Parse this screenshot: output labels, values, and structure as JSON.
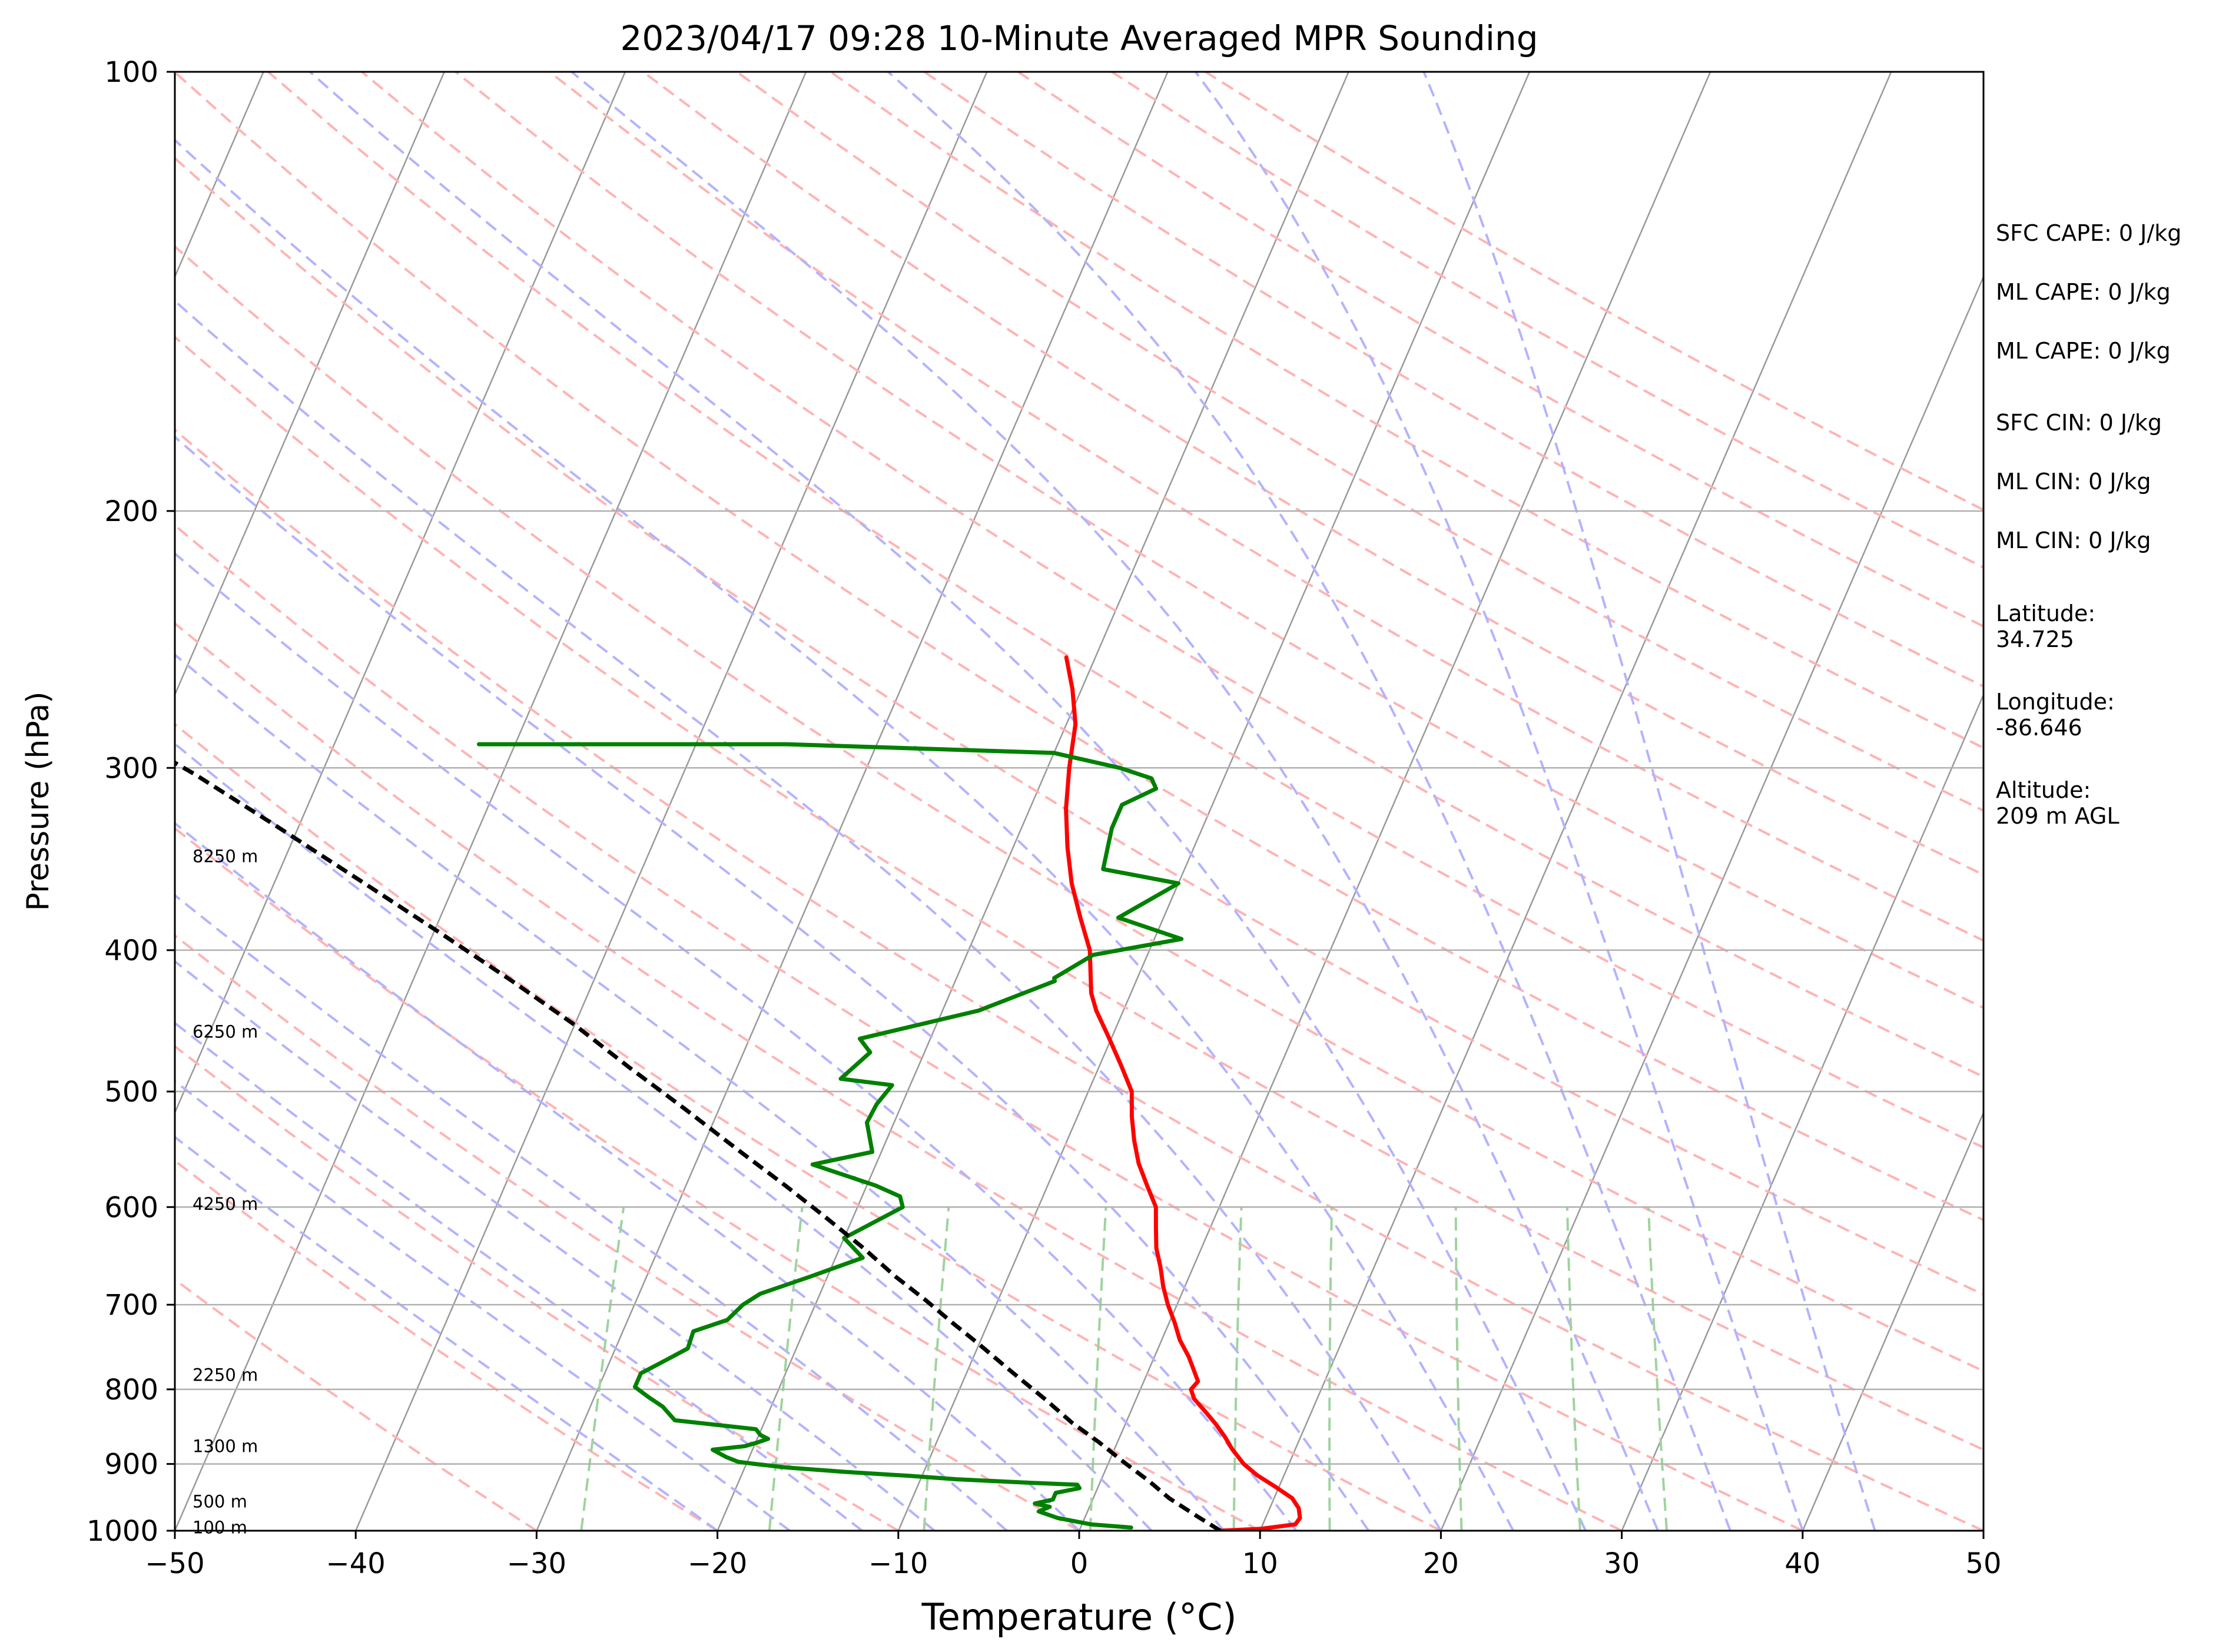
{
  "chart_data": {
    "type": "line",
    "title": "2023/04/17 09:28 10-Minute Averaged MPR Sounding",
    "xlabel": "Temperature (°C)",
    "ylabel": "Pressure (hPa)",
    "xlim": [
      -50,
      50
    ],
    "ylim": [
      1000,
      100
    ],
    "y_scale": "log",
    "skew_t": true,
    "x_ticks": [
      "−50",
      "−40",
      "−30",
      "−20",
      "−10",
      "0",
      "10",
      "20",
      "30",
      "40",
      "50"
    ],
    "x_tick_values": [
      -50,
      -40,
      -30,
      -20,
      -10,
      0,
      10,
      20,
      30,
      40,
      50
    ],
    "y_ticks": [
      "100",
      "200",
      "300",
      "400",
      "500",
      "600",
      "700",
      "800",
      "900",
      "1000"
    ],
    "y_tick_values": [
      100,
      200,
      300,
      400,
      500,
      600,
      700,
      800,
      900,
      1000
    ],
    "grid": true,
    "height_labels": [
      {
        "text": "8250 m",
        "p": 345
      },
      {
        "text": "6250 m",
        "p": 455
      },
      {
        "text": "4250 m",
        "p": 597
      },
      {
        "text": "2250 m",
        "p": 782
      },
      {
        "text": "1300 m",
        "p": 875
      },
      {
        "text": "500 m",
        "p": 955
      },
      {
        "text": "100 m",
        "p": 995
      }
    ],
    "series": [
      {
        "key": "temperature",
        "color": "#ff0000",
        "points": [
          [
            7.8,
            1000
          ],
          [
            10,
            997
          ],
          [
            11.8,
            990
          ],
          [
            11.9,
            980
          ],
          [
            11.6,
            965
          ],
          [
            11,
            950
          ],
          [
            9.8,
            933
          ],
          [
            8.5,
            916
          ],
          [
            7.5,
            900
          ],
          [
            6.5,
            879
          ],
          [
            5.8,
            862
          ],
          [
            5,
            845
          ],
          [
            4.2,
            830
          ],
          [
            3.2,
            812
          ],
          [
            2.8,
            800
          ],
          [
            3,
            790
          ],
          [
            1.9,
            760
          ],
          [
            1,
            740
          ],
          [
            0.3,
            720
          ],
          [
            -0.5,
            700
          ],
          [
            -1.2,
            680
          ],
          [
            -1.8,
            660
          ],
          [
            -2.5,
            640
          ],
          [
            -3,
            620
          ],
          [
            -3.5,
            600
          ],
          [
            -4.5,
            580
          ],
          [
            -5.5,
            560
          ],
          [
            -6.3,
            540
          ],
          [
            -7,
            520
          ],
          [
            -7.6,
            500
          ],
          [
            -8.8,
            480
          ],
          [
            -10.1,
            460
          ],
          [
            -11.5,
            440
          ],
          [
            -12.2,
            428
          ],
          [
            -13.3,
            400
          ],
          [
            -14.6,
            380
          ],
          [
            -15.9,
            360
          ],
          [
            -17,
            340
          ],
          [
            -18,
            320
          ],
          [
            -18.8,
            300
          ],
          [
            -19.5,
            280
          ],
          [
            -20.5,
            265
          ],
          [
            -21.6,
            252
          ]
        ]
      },
      {
        "key": "dewpoint",
        "color": "#008000",
        "points": [
          [
            2.8,
            995
          ],
          [
            0.5,
            990
          ],
          [
            -1.5,
            980
          ],
          [
            -2.7,
            970
          ],
          [
            -2.2,
            963
          ],
          [
            -3.1,
            958
          ],
          [
            -2.2,
            952
          ],
          [
            -2.2,
            942
          ],
          [
            -1,
            935
          ],
          [
            -1.2,
            930
          ],
          [
            -4,
            927
          ],
          [
            -8,
            922
          ],
          [
            -10.7,
            917
          ],
          [
            -14.5,
            911
          ],
          [
            -17.7,
            905
          ],
          [
            -19.5,
            900
          ],
          [
            -20.5,
            897
          ],
          [
            -21.3,
            890
          ],
          [
            -22.2,
            880
          ],
          [
            -20.5,
            875
          ],
          [
            -19.9,
            870
          ],
          [
            -19.4,
            865
          ],
          [
            -19.9,
            860
          ],
          [
            -20.3,
            852
          ],
          [
            -25,
            840
          ],
          [
            -26,
            822
          ],
          [
            -27,
            810
          ],
          [
            -28,
            797
          ],
          [
            -28,
            780
          ],
          [
            -27,
            765
          ],
          [
            -26,
            750
          ],
          [
            -26.1,
            730
          ],
          [
            -24.5,
            717
          ],
          [
            -24,
            700
          ],
          [
            -23.3,
            688
          ],
          [
            -21,
            670
          ],
          [
            -18.5,
            650
          ],
          [
            -20,
            630
          ],
          [
            -17.5,
            600
          ],
          [
            -17.9,
            590
          ],
          [
            -19.5,
            580
          ],
          [
            -23.5,
            561
          ],
          [
            -20.5,
            550
          ],
          [
            -21.5,
            525
          ],
          [
            -21.4,
            510
          ],
          [
            -21,
            495
          ],
          [
            -24,
            490
          ],
          [
            -23,
            470
          ],
          [
            -23.9,
            460
          ],
          [
            -18,
            440
          ],
          [
            -14.5,
            420
          ],
          [
            -14.6,
            418
          ],
          [
            -13,
            403
          ],
          [
            -8.5,
            393
          ],
          [
            -12.5,
            380
          ],
          [
            -10,
            360
          ],
          [
            -14.5,
            352
          ],
          [
            -15,
            330
          ],
          [
            -15,
            318
          ],
          [
            -13.5,
            310
          ],
          [
            -14,
            305
          ],
          [
            -16,
            300
          ],
          [
            -20,
            293
          ],
          [
            -35,
            289
          ],
          [
            -52,
            289
          ]
        ]
      },
      {
        "key": "parcel",
        "color": "#000000",
        "dashed": true,
        "points": [
          [
            7.8,
            1000
          ],
          [
            6,
            975
          ],
          [
            4.2,
            950
          ],
          [
            3,
            930
          ],
          [
            2.5,
            922
          ],
          [
            1,
            900
          ],
          [
            -1,
            870
          ],
          [
            -3,
            843
          ],
          [
            -5,
            813
          ],
          [
            -7.4,
            780
          ],
          [
            -10,
            745
          ],
          [
            -12,
            720
          ],
          [
            -14,
            695
          ],
          [
            -16.2,
            670
          ],
          [
            -18.7,
            640
          ],
          [
            -21.5,
            610
          ],
          [
            -24.5,
            580
          ],
          [
            -28,
            548
          ],
          [
            -32,
            513
          ],
          [
            -36,
            481
          ],
          [
            -40,
            450
          ],
          [
            -44.5,
            420
          ],
          [
            -49.5,
            390
          ],
          [
            -55,
            360
          ],
          [
            -61,
            330
          ],
          [
            -67,
            303
          ],
          [
            -73,
            280
          ],
          [
            -78,
            262
          ]
        ]
      }
    ]
  },
  "info": {
    "sfc_cape": "SFC CAPE: 0 J/kg",
    "ml_cape_1": "ML CAPE: 0 J/kg",
    "ml_cape_2": "ML CAPE: 0 J/kg",
    "sfc_cin": "SFC CIN: 0 J/kg",
    "ml_cin_1": "ML CIN: 0 J/kg",
    "ml_cin_2": "ML CIN: 0 J/kg",
    "latitude": "Latitude:\n34.725",
    "longitude": "Longitude:\n-86.646",
    "altitude": "Altitude:\n209 m AGL"
  },
  "colors": {
    "temperature": "#ff0000",
    "dewpoint": "#008000",
    "parcel": "#000000",
    "dry_adiabat": "#ffb3b3",
    "moist_adiabat": "#b3b3ff",
    "mixing_ratio": "#9fd39f",
    "isotherm": "#999999"
  }
}
